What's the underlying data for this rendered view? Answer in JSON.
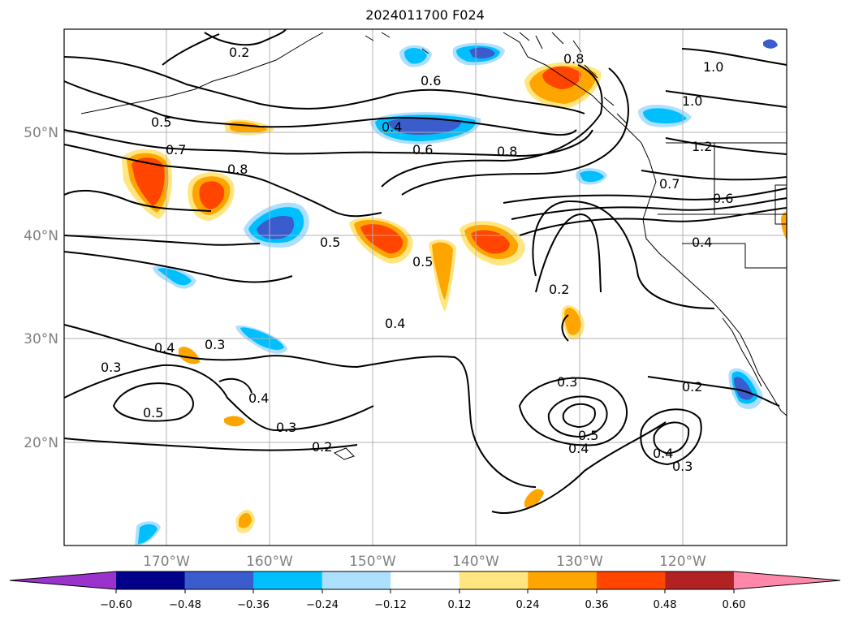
{
  "title": "2024011700 F024",
  "map": {
    "lat_labels": [
      "50°N",
      "40°N",
      "30°N",
      "20°N"
    ],
    "lon_labels": [
      "170°W",
      "160°W",
      "150°W",
      "140°W",
      "130°W",
      "120°W"
    ],
    "contour_labels": [
      "0.2",
      "0.6",
      "0.8",
      "1.0",
      "1.0",
      "0.5",
      "0.4",
      "0.6",
      "0.8",
      "1.2",
      "0.7",
      "0.8",
      "0.7",
      "0.6",
      "0.5",
      "0.5",
      "0.4",
      "0.2",
      "0.4",
      "0.3",
      "0.3",
      "0.5",
      "0.4",
      "0.3",
      "0.2",
      "0.3",
      "0.5",
      "0.4",
      "0.2",
      "0.4",
      "0.3"
    ],
    "grid": true
  },
  "colorbar": {
    "ticks": [
      "−0.60",
      "−0.48",
      "−0.36",
      "−0.24",
      "−0.12",
      "0.12",
      "0.24",
      "0.36",
      "0.48",
      "0.60"
    ],
    "colors": [
      "#9933cc",
      "#00008b",
      "#3a5ccc",
      "#00bfff",
      "#addfff",
      "#ffffff",
      "#ffe680",
      "#ffa500",
      "#ff4500",
      "#b22222",
      "#ff88aa"
    ]
  }
}
